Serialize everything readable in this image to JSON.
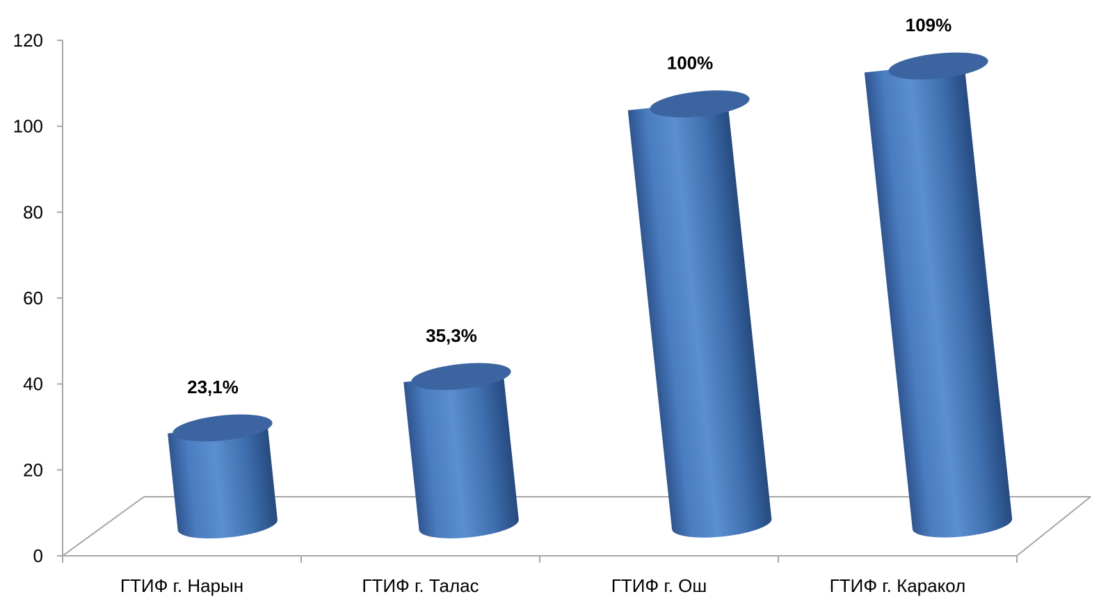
{
  "chart_data": {
    "type": "bar",
    "categories": [
      "ГТИФ г. Нарын",
      "ГТИФ г. Талас",
      "ГТИФ г. Ош",
      "ГТИФ г. Каракол"
    ],
    "values": [
      23.1,
      35.3,
      100,
      109
    ],
    "data_labels": [
      "23,1%",
      "35,3%",
      "100%",
      "109%"
    ],
    "yticks": [
      "0",
      "20",
      "40",
      "60",
      "80",
      "100",
      "120"
    ],
    "ylim": [
      0,
      120
    ],
    "title": "",
    "xlabel": "",
    "ylabel": "",
    "grid": false,
    "style": "3d-cylinder",
    "bar_color": "#4f81bd",
    "bar_top_color": "#3b64a1"
  }
}
